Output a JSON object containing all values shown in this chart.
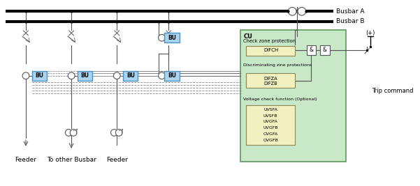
{
  "bg_color": "#ffffff",
  "bu_color": "#a8d4f0",
  "bu_border": "#4a90c4",
  "cu_box_color": "#c8e8c8",
  "cu_box_border": "#5a9a5a",
  "difch_box_color": "#f0f0c0",
  "inner_box_color": "#f0f0c0",
  "busbar_a_label": "Busbar A",
  "busbar_b_label": "Busbar B",
  "trip_label": "Trip command",
  "plus_label": "(+)",
  "feeder1_label": "Feeder",
  "feeder2_label": "To other Busbar",
  "feeder3_label": "Feeder",
  "vol_labels": [
    "UVSFA",
    "UVSFB",
    "UVGFA",
    "UVGFB",
    "OVGFA",
    "OVGFB"
  ],
  "line_color": "#555555",
  "dark": "#222222"
}
